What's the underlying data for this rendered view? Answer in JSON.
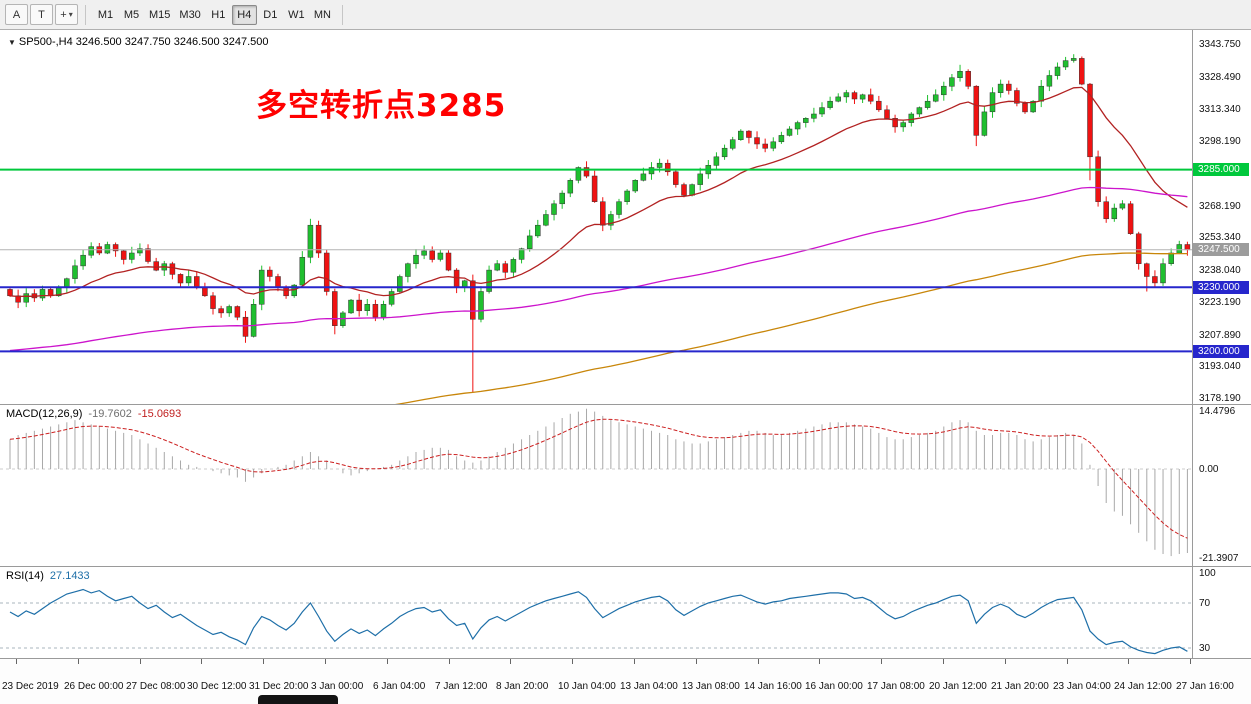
{
  "toolbar": {
    "button_a_label": "A",
    "button_t_label": "T",
    "dropdown_icon_glyph": "+",
    "dropdown_caret": "▾",
    "timeframes": [
      "M1",
      "M5",
      "M15",
      "M30",
      "H1",
      "H4",
      "D1",
      "W1",
      "MN"
    ],
    "active_timeframe": "H4"
  },
  "chart": {
    "title": {
      "triangle": "▼",
      "symbol": "SP500-,H4",
      "open": "3246.500",
      "high": "3247.750",
      "low": "3246.500",
      "close": "3247.500"
    },
    "annotation": {
      "text": "多空转折点3285",
      "color": "#ff0000"
    },
    "price_axis": [
      {
        "label": "3343.750",
        "value": 3343.75
      },
      {
        "label": "3328.490",
        "value": 3328.49
      },
      {
        "label": "3313.340",
        "value": 3313.34
      },
      {
        "label": "3298.190",
        "value": 3298.19
      },
      {
        "label": "3268.190",
        "value": 3268.19
      },
      {
        "label": "3253.340",
        "value": 3253.34
      },
      {
        "label": "3238.040",
        "value": 3238.04
      },
      {
        "label": "3223.190",
        "value": 3223.19
      },
      {
        "label": "3207.890",
        "value": 3207.89
      },
      {
        "label": "3193.040",
        "value": 3193.04
      },
      {
        "label": "3178.190",
        "value": 3178.19
      }
    ],
    "hlines": [
      {
        "label": "3285.000",
        "value": 3285.0,
        "color": "#00c83c",
        "role": "resistance-line"
      },
      {
        "label": "3230.000",
        "value": 3230.0,
        "color": "#2626cc",
        "role": "support-line"
      },
      {
        "label": "3200.000",
        "value": 3200.0,
        "color": "#2626cc",
        "role": "support-line"
      }
    ],
    "current_price": {
      "label": "3247.500",
      "value": 3247.5,
      "line_color": "#b4b4b4",
      "badge_color": "#9c9c9c"
    }
  },
  "macd_panel": {
    "name": "MACD(12,26,9)",
    "value1": "-19.7602",
    "value2": "-15.0693",
    "axis": [
      14.4796,
      0,
      -21.3907
    ],
    "axis_labels": [
      "14.4796",
      "0.00",
      "-21.3907"
    ]
  },
  "rsi_panel": {
    "name": "RSI(14)",
    "value": "27.1433",
    "axis": [
      100,
      70,
      30
    ],
    "axis_labels": [
      "100",
      "70",
      "30"
    ],
    "levels": [
      70,
      30
    ]
  },
  "time_axis": {
    "labels": [
      "23 Dec 2019",
      "26 Dec 00:00",
      "27 Dec 08:00",
      "30 Dec 12:00",
      "31 Dec 20:00",
      "3 Jan 00:00",
      "6 Jan 04:00",
      "7 Jan 12:00",
      "8 Jan 20:00",
      "10 Jan 04:00",
      "13 Jan 04:00",
      "13 Jan 08:00",
      "14 Jan 16:00",
      "16 Jan 00:00",
      "17 Jan 08:00",
      "20 Jan 12:00",
      "21 Jan 20:00",
      "23 Jan 04:00",
      "24 Jan 12:00",
      "27 Jan 16:00"
    ]
  },
  "colors": {
    "up": "#1fbf2f",
    "down": "#ef1212",
    "candle_outline": "#333333",
    "ma_fast": "#b22222",
    "ma_mid": "#cc14cc",
    "ma_slow": "#c8860a",
    "macd_hist": "#a8a8a8",
    "macd_signal": "#cc2020",
    "macd_zero": "#cccccc",
    "rsi_line": "#1e6fa8",
    "rsi_levels": "#aab4be"
  },
  "chart_data": {
    "type": "candlestick",
    "symbol": "SP500-",
    "timeframe": "H4",
    "ylim": [
      3178.19,
      3343.75
    ],
    "open_first": 3229,
    "closes": [
      3226,
      3223,
      3227,
      3225,
      3229,
      3226,
      3230,
      3234,
      3240,
      3245,
      3249,
      3246,
      3250,
      3247,
      3243,
      3246,
      3248,
      3242,
      3238,
      3241,
      3236,
      3232,
      3235,
      3230,
      3226,
      3220,
      3218,
      3221,
      3216,
      3207,
      3222,
      3238,
      3235,
      3230,
      3226,
      3231,
      3244,
      3259,
      3246,
      3228,
      3212,
      3218,
      3224,
      3219,
      3222,
      3216,
      3222,
      3228,
      3235,
      3241,
      3245,
      3247,
      3243,
      3246,
      3238,
      3230,
      3233,
      3215,
      3228,
      3238,
      3241,
      3237,
      3243,
      3248,
      3254,
      3259,
      3264,
      3269,
      3274,
      3280,
      3286,
      3282,
      3270,
      3259,
      3264,
      3270,
      3275,
      3280,
      3283,
      3286,
      3288,
      3284,
      3278,
      3273,
      3278,
      3283,
      3287,
      3291,
      3295,
      3299,
      3303,
      3300,
      3297,
      3295,
      3298,
      3301,
      3304,
      3307,
      3309,
      3311,
      3314,
      3317,
      3319,
      3321,
      3318,
      3320,
      3317,
      3313,
      3309,
      3305,
      3307,
      3311,
      3314,
      3317,
      3320,
      3324,
      3328,
      3331,
      3324,
      3301,
      3312,
      3321,
      3325,
      3322,
      3316,
      3312,
      3317,
      3324,
      3329,
      3333,
      3336,
      3337,
      3325,
      3291,
      3270,
      3262,
      3267,
      3269,
      3255,
      3241,
      3235,
      3232,
      3241,
      3246,
      3250,
      3247.5
    ],
    "wick_low_overrides": {
      "29": 3204,
      "40": 3208,
      "57": 3181,
      "119": 3296,
      "133": 3280,
      "140": 3228
    },
    "wick_high_overrides": {
      "10": 3251,
      "37": 3262,
      "117": 3334,
      "131": 3339
    },
    "moving_averages": [
      {
        "name": "ma-fast-red",
        "k": 0.105,
        "seed": 3226
      },
      {
        "name": "ma-mid-magenta",
        "k": 0.015,
        "seed": 3200
      },
      {
        "name": "ma-slow-orange",
        "k": 0.01,
        "seed": 3140
      }
    ],
    "macd": {
      "label": "MACD(12,26,9)",
      "current_main": -19.7602,
      "current_signal": -15.0693,
      "ylim": [
        -21.3907,
        14.4796
      ],
      "signal_period": 9,
      "values": [
        7,
        8,
        8.5,
        9,
        9.5,
        10,
        10.5,
        11,
        11.5,
        11,
        10.5,
        10,
        9.5,
        9,
        8.5,
        8,
        7,
        6,
        5,
        4,
        3,
        2,
        1,
        0.5,
        0,
        -0.5,
        -1,
        -1.5,
        -2,
        -3,
        -2,
        -1,
        0,
        0.5,
        1,
        2,
        3,
        4,
        3,
        2,
        0,
        -1,
        -1.5,
        -1,
        -0.5,
        0,
        0.5,
        1,
        2,
        3,
        4,
        4.5,
        5,
        5,
        4.5,
        3,
        2,
        1.5,
        2,
        3,
        4,
        5,
        6,
        7,
        8,
        9,
        10,
        11,
        12,
        13,
        13.5,
        14.2,
        13.5,
        12.5,
        11.5,
        11,
        10.5,
        10,
        9.5,
        9,
        8.5,
        8,
        7,
        6.5,
        6,
        6,
        6.5,
        7,
        7.5,
        8,
        8.5,
        9,
        9,
        8.5,
        8,
        8,
        8.5,
        9,
        9.5,
        10,
        10.5,
        11,
        11,
        11,
        10.5,
        10,
        9.5,
        8.5,
        7.5,
        7,
        7,
        7.5,
        8,
        8.5,
        9,
        10,
        11,
        11.5,
        11,
        9,
        8,
        8,
        8.5,
        8.5,
        8,
        7,
        6.5,
        7,
        7.5,
        8,
        8.5,
        8,
        6,
        1,
        -4,
        -8,
        -10,
        -11,
        -13,
        -15,
        -17,
        -19,
        -20,
        -20.5,
        -20,
        -19.76
      ]
    },
    "rsi": {
      "label": "RSI(14)",
      "current": 27.1433,
      "levels": [
        70,
        30
      ],
      "values": [
        62,
        58,
        63,
        60,
        65,
        70,
        74,
        78,
        80,
        82,
        79,
        81,
        76,
        72,
        74,
        76,
        70,
        65,
        68,
        62,
        57,
        60,
        55,
        50,
        46,
        42,
        44,
        40,
        37,
        33,
        48,
        58,
        55,
        50,
        46,
        52,
        62,
        70,
        58,
        45,
        36,
        42,
        47,
        43,
        46,
        41,
        47,
        52,
        58,
        62,
        65,
        66,
        62,
        64,
        56,
        50,
        52,
        38,
        48,
        55,
        58,
        54,
        58,
        62,
        66,
        69,
        72,
        74,
        76,
        78,
        80,
        75,
        65,
        57,
        61,
        65,
        68,
        71,
        73,
        75,
        76,
        72,
        64,
        59,
        63,
        67,
        70,
        72,
        74,
        76,
        77,
        74,
        71,
        69,
        71,
        72,
        74,
        75,
        76,
        77,
        78,
        79,
        79,
        78,
        74,
        75,
        72,
        66,
        60,
        56,
        58,
        62,
        65,
        68,
        70,
        73,
        76,
        77,
        72,
        52,
        60,
        66,
        69,
        66,
        60,
        57,
        61,
        66,
        70,
        73,
        74,
        75,
        64,
        45,
        38,
        33,
        35,
        36,
        31,
        28,
        26,
        25,
        28,
        30,
        31,
        27.1
      ]
    }
  }
}
